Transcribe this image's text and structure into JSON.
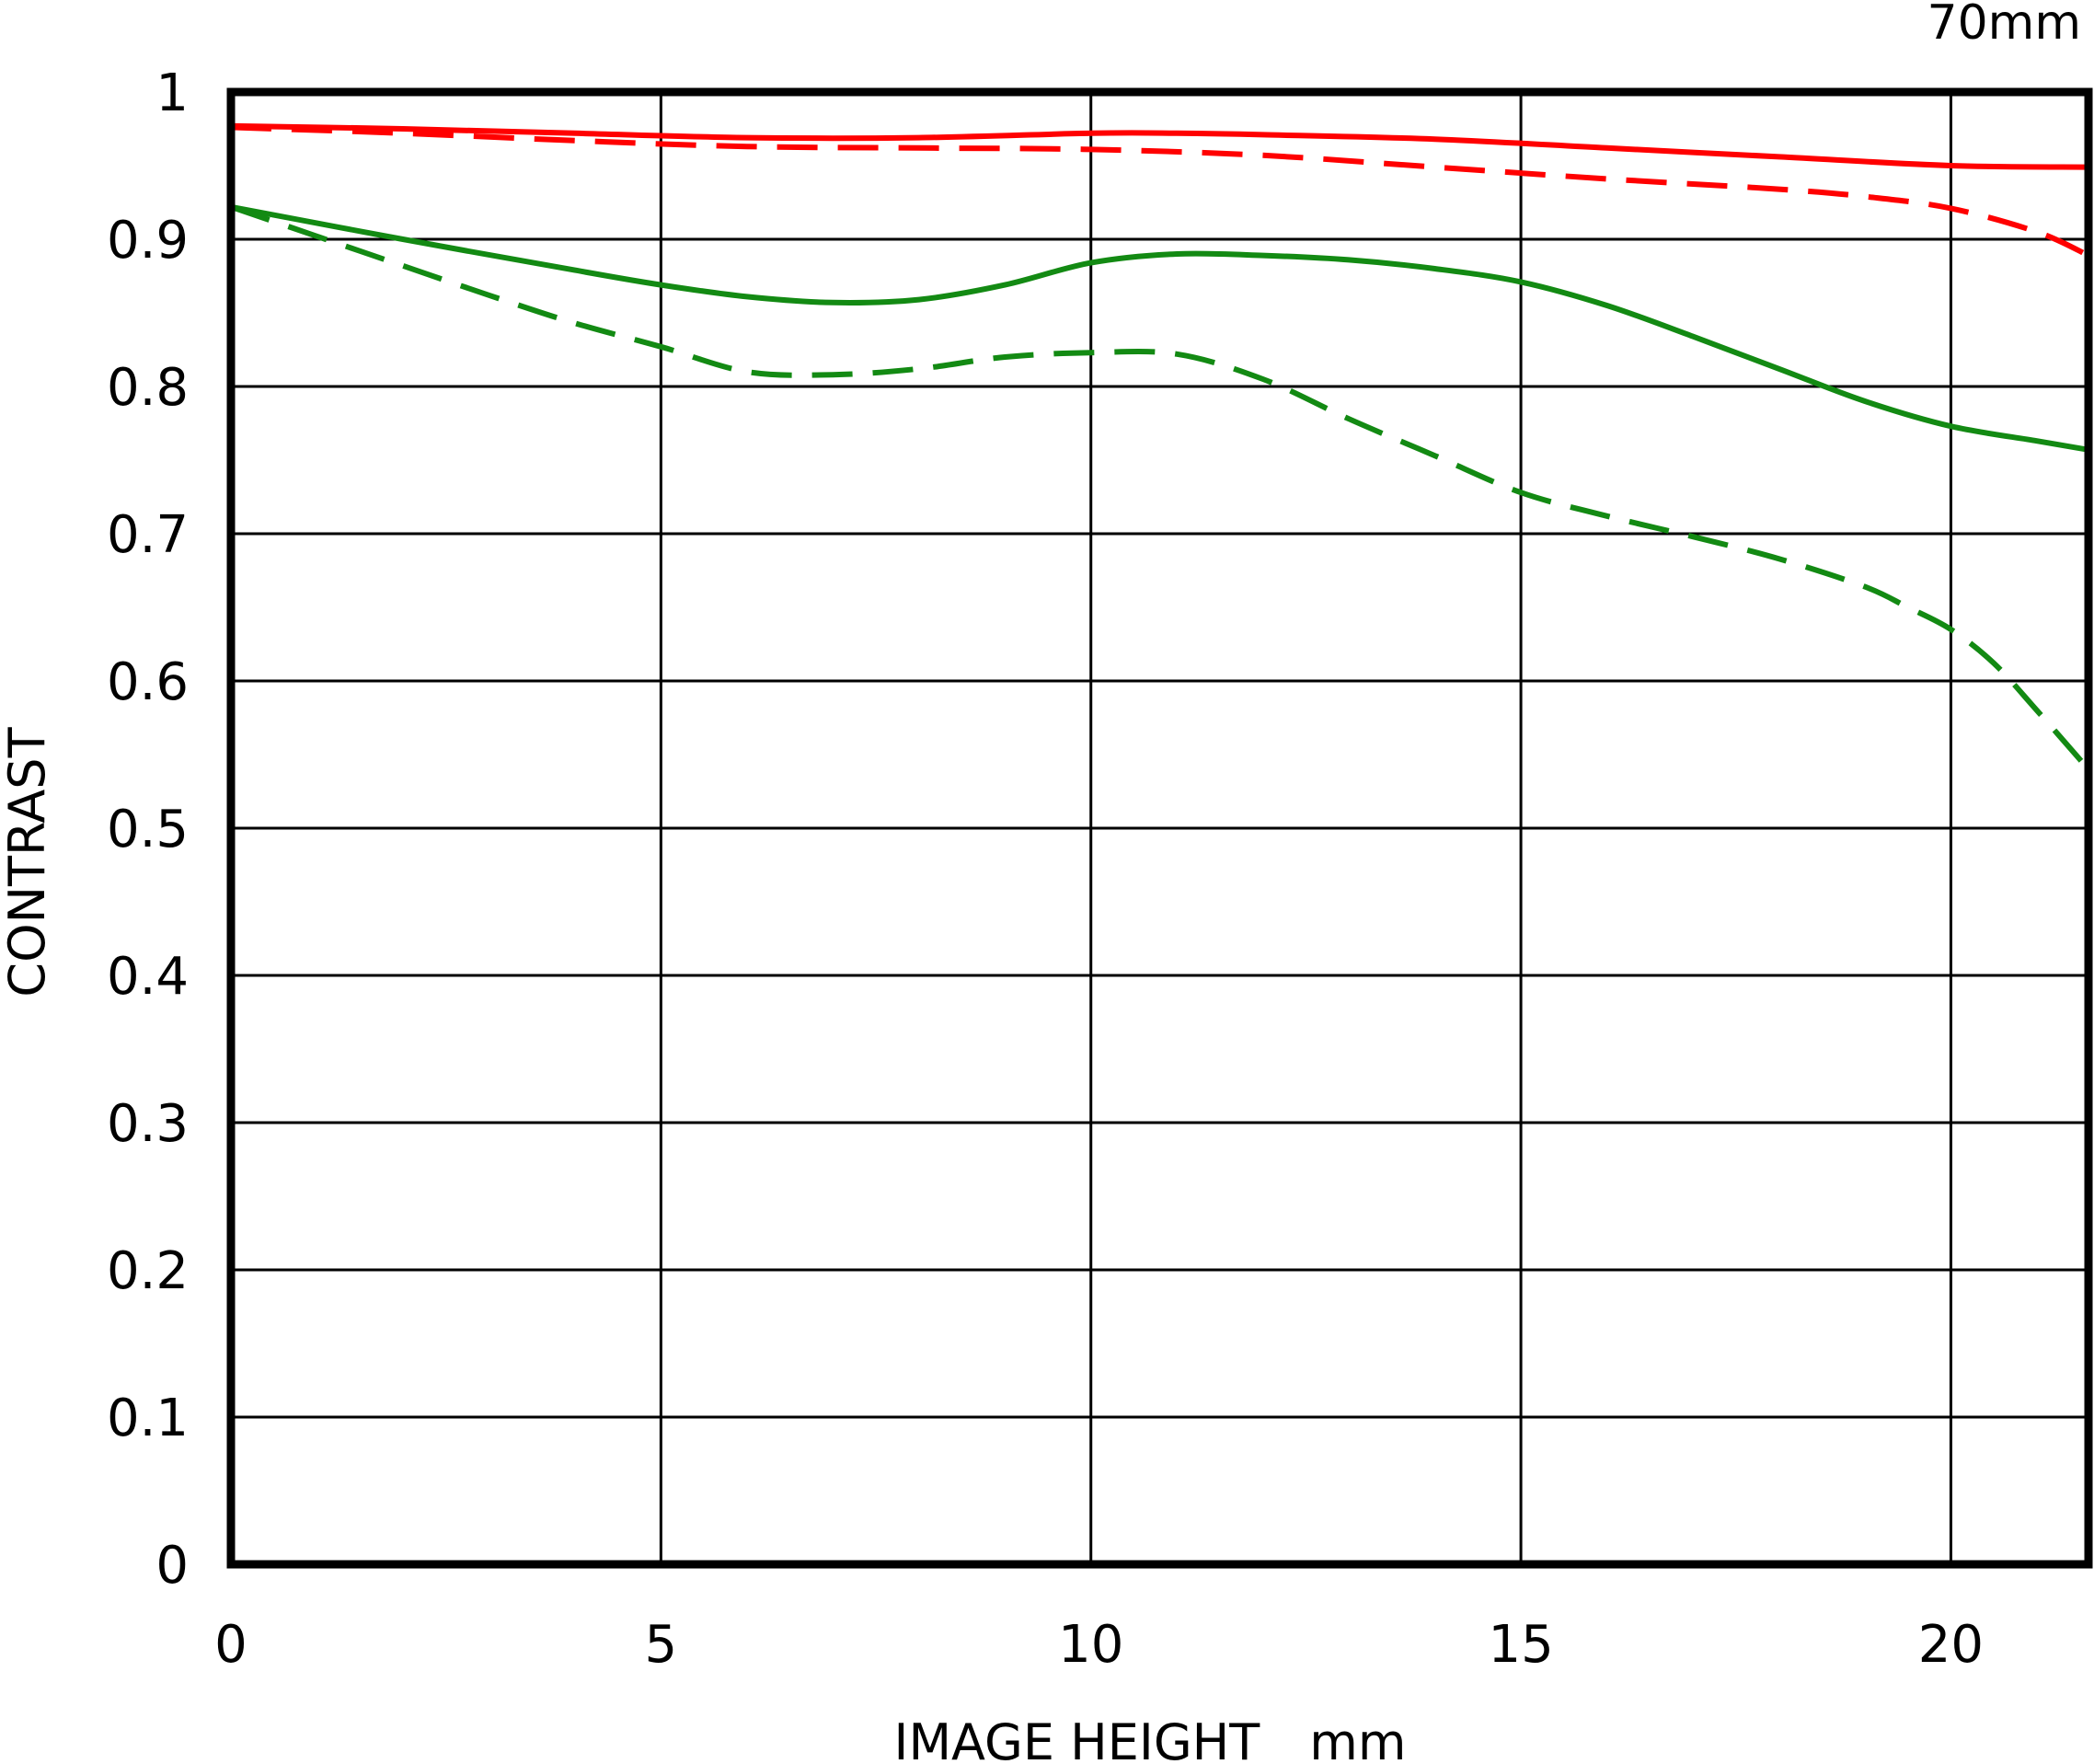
{
  "chart_data": {
    "type": "line",
    "title": "70mm",
    "xlabel": "IMAGE HEIGHT　mm",
    "ylabel": "CONTRAST",
    "xlim": [
      0,
      21.6
    ],
    "ylim": [
      0,
      1
    ],
    "xticks": [
      0,
      5,
      10,
      15,
      20
    ],
    "xtick_labels": [
      "0",
      "5",
      "10",
      "15",
      "20"
    ],
    "yticks": [
      0,
      0.1,
      0.2,
      0.3,
      0.4,
      0.5,
      0.6,
      0.7,
      0.8,
      0.9,
      1
    ],
    "ytick_labels": [
      "0",
      "0.1",
      "0.2",
      "0.3",
      "0.4",
      "0.5",
      "0.6",
      "0.7",
      "0.8",
      "0.9",
      "1"
    ],
    "grid": true,
    "legend": "none",
    "series": [
      {
        "color": "#ff0000",
        "dash": "solid",
        "x": [
          0,
          2,
          4,
          6,
          8,
          10,
          11,
          12,
          14,
          16,
          18,
          20,
          21.6
        ],
        "y": [
          0.977,
          0.975,
          0.972,
          0.969,
          0.969,
          0.972,
          0.972,
          0.971,
          0.968,
          0.962,
          0.956,
          0.95,
          0.949
        ]
      },
      {
        "color": "#ff0000",
        "dash": "dashed",
        "x": [
          0,
          2,
          4,
          6,
          8,
          10,
          12,
          14,
          16,
          18,
          19,
          20,
          21,
          21.6
        ],
        "y": [
          0.976,
          0.972,
          0.967,
          0.963,
          0.962,
          0.961,
          0.957,
          0.949,
          0.941,
          0.934,
          0.929,
          0.921,
          0.905,
          0.889
        ]
      },
      {
        "color": "#138a13",
        "dash": "solid",
        "x": [
          0,
          2,
          4,
          5,
          6,
          7,
          8,
          9,
          10,
          11,
          12,
          13,
          14,
          15,
          16,
          17,
          18,
          19,
          20,
          21,
          21.6
        ],
        "y": [
          0.922,
          0.9,
          0.879,
          0.869,
          0.861,
          0.857,
          0.859,
          0.869,
          0.884,
          0.89,
          0.889,
          0.886,
          0.88,
          0.871,
          0.855,
          0.834,
          0.812,
          0.79,
          0.773,
          0.763,
          0.757
        ]
      },
      {
        "color": "#138a13",
        "dash": "dashed",
        "x": [
          0,
          1,
          2,
          3,
          4,
          5,
          6,
          7,
          8,
          9,
          10,
          11,
          12,
          13,
          14,
          15,
          16,
          17,
          18,
          19,
          19.5,
          20,
          20.5,
          21,
          21.6
        ],
        "y": [
          0.922,
          0.902,
          0.882,
          0.862,
          0.843,
          0.827,
          0.81,
          0.808,
          0.812,
          0.82,
          0.823,
          0.822,
          0.805,
          0.778,
          0.753,
          0.728,
          0.712,
          0.698,
          0.683,
          0.664,
          0.65,
          0.635,
          0.612,
          0.58,
          0.54
        ]
      }
    ]
  }
}
